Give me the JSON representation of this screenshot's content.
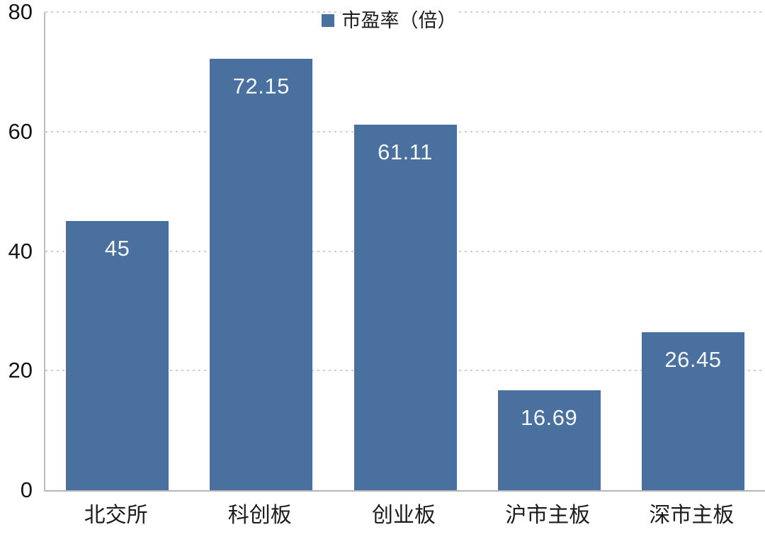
{
  "chart_data": {
    "type": "bar",
    "title": "",
    "legend_label": "市盈率（倍）",
    "legend_position": "top-center",
    "categories": [
      "北交所",
      "科创板",
      "创业板",
      "沪市主板",
      "深市主板"
    ],
    "values": [
      45,
      72.15,
      61.11,
      16.69,
      26.45
    ],
    "value_labels": [
      "45",
      "72.15",
      "61.11",
      "16.69",
      "26.45"
    ],
    "xlabel": "",
    "ylabel": "",
    "ylim": [
      0,
      80
    ],
    "yticks": [
      0,
      20,
      40,
      60,
      80
    ],
    "grid": "horizontal-dotted",
    "colors": {
      "bar": "#4A709F",
      "value_label": "#f5f7fa",
      "axis_line": "#bdbdbd",
      "gridline": "#cdcdcd",
      "tick_text": "#1c1c1c"
    }
  }
}
